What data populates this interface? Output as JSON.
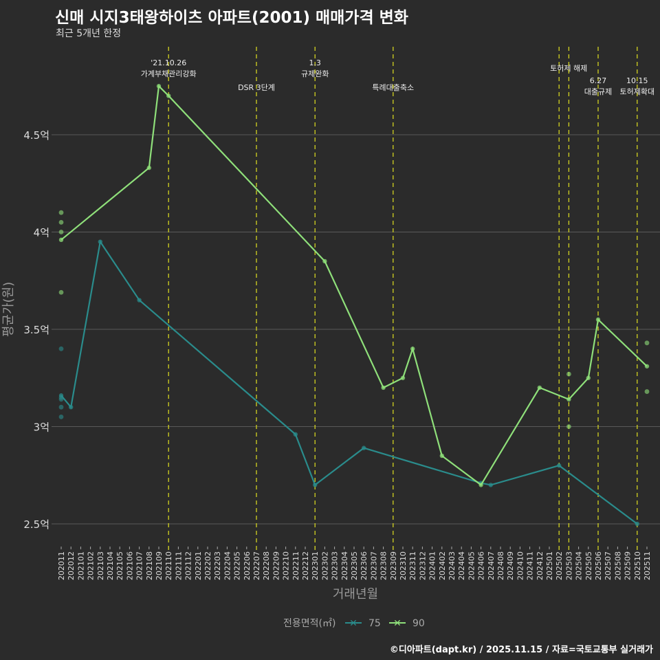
{
  "title": "신매 시지3태왕하이츠 아파트(2001) 매매가격 변화",
  "subtitle": "최근 5개년 한정",
  "caption": "©디아파트(dapt.kr) / 2025.11.15 / 자료=국토교통부 실거래가",
  "colors": {
    "s75": "#2a8c8c",
    "s90": "#8fe07a",
    "vline": "#d4d420",
    "grid": "#5a5a5a"
  },
  "chart_data": {
    "type": "line",
    "xlabel": "거래년월",
    "ylabel": "평균가(원)",
    "ylim": [
      2.4,
      4.9
    ],
    "yticks": [
      {
        "v": 2.5,
        "label": "2.5억"
      },
      {
        "v": 3,
        "label": "3억"
      },
      {
        "v": 3.5,
        "label": "3.5억"
      },
      {
        "v": 4,
        "label": "4억"
      },
      {
        "v": 4.5,
        "label": "4.5억"
      }
    ],
    "categories": [
      "202011",
      "202012",
      "202101",
      "202102",
      "202103",
      "202104",
      "202105",
      "202106",
      "202107",
      "202108",
      "202109",
      "202110",
      "202111",
      "202112",
      "202201",
      "202202",
      "202203",
      "202204",
      "202205",
      "202206",
      "202207",
      "202208",
      "202209",
      "202210",
      "202211",
      "202212",
      "202301",
      "202302",
      "202303",
      "202304",
      "202305",
      "202306",
      "202307",
      "202308",
      "202309",
      "202310",
      "202311",
      "202312",
      "202401",
      "202402",
      "202403",
      "202404",
      "202405",
      "202406",
      "202407",
      "202408",
      "202409",
      "202410",
      "202411",
      "202412",
      "202501",
      "202502",
      "202503",
      "202504",
      "202505",
      "202506",
      "202507",
      "202508",
      "202509",
      "202510",
      "202511"
    ],
    "legend": {
      "title": "전용면적(㎡)",
      "position": "bottom"
    },
    "series": [
      {
        "name": "75",
        "color": "#2a8c8c",
        "line": [
          [
            "202011",
            3.16
          ],
          [
            "202012",
            3.1
          ],
          [
            "202103",
            3.95
          ],
          [
            "202107",
            3.65
          ],
          [
            "202211",
            2.96
          ],
          [
            "202301",
            2.7
          ],
          [
            "202306",
            2.89
          ],
          [
            "202406",
            2.71
          ],
          [
            "202407",
            2.7
          ],
          [
            "202502",
            2.8
          ],
          [
            "202510",
            2.5
          ]
        ],
        "points": [
          [
            "202011",
            3.4
          ],
          [
            "202011",
            3.15
          ],
          [
            "202011",
            3.14
          ],
          [
            "202011",
            3.1
          ],
          [
            "202011",
            3.05
          ]
        ]
      },
      {
        "name": "90",
        "color": "#8fe07a",
        "line": [
          [
            "202011",
            3.96
          ],
          [
            "202108",
            4.33
          ],
          [
            "202109",
            4.75
          ],
          [
            "202110",
            4.7
          ],
          [
            "202302",
            3.85
          ],
          [
            "202308",
            3.2
          ],
          [
            "202310",
            3.25
          ],
          [
            "202311",
            3.4
          ],
          [
            "202402",
            2.85
          ],
          [
            "202406",
            2.7
          ],
          [
            "202412",
            3.2
          ],
          [
            "202503",
            3.14
          ],
          [
            "202505",
            3.25
          ],
          [
            "202506",
            3.55
          ],
          [
            "202511",
            3.31
          ]
        ],
        "points": [
          [
            "202011",
            4.1
          ],
          [
            "202011",
            4.05
          ],
          [
            "202011",
            4.0
          ],
          [
            "202011",
            3.69
          ],
          [
            "202503",
            3.27
          ],
          [
            "202503",
            3.0
          ],
          [
            "202511",
            3.43
          ],
          [
            "202511",
            3.18
          ]
        ]
      }
    ],
    "annotations": [
      {
        "x": "202110",
        "lines": [
          "'21.10.26",
          "가계부채관리강화"
        ],
        "row": 0
      },
      {
        "x": "202207",
        "lines": [
          "DSR 3단계"
        ],
        "row": 1
      },
      {
        "x": "202301",
        "lines": [
          "1.3",
          "규제완화"
        ],
        "row": 0
      },
      {
        "x": "202309",
        "lines": [
          "특례대출축소"
        ],
        "row": 1
      },
      {
        "x": "202502",
        "lines": [
          "토허제 해제"
        ],
        "row": 2
      },
      {
        "x": "202503",
        "lines": [],
        "row": 0
      },
      {
        "x": "202506",
        "lines": [
          "6.27",
          "대출규제"
        ],
        "row": 3
      },
      {
        "x": "202510",
        "lines": [
          "10.15",
          "토허제확대"
        ],
        "row": 3
      }
    ]
  }
}
